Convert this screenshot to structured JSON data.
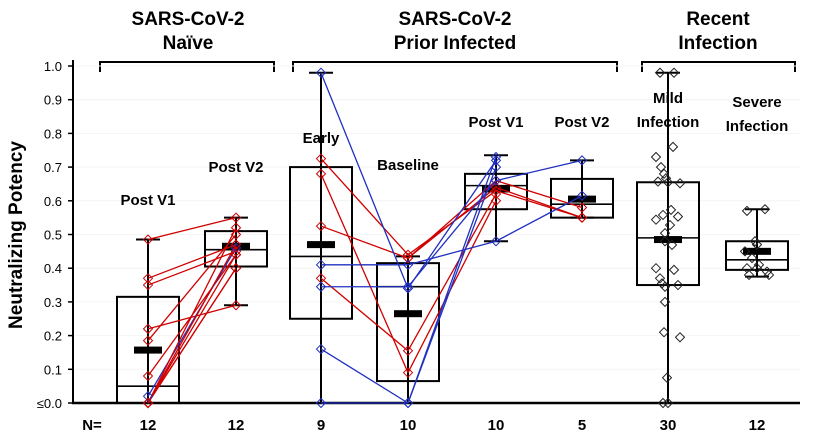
{
  "chart_data": {
    "type": "box",
    "ylabel": "Neutralizing Potency",
    "ylim": [
      0,
      1.0
    ],
    "yticks": [
      "≤0.0",
      "0.1",
      "0.2",
      "0.3",
      "0.4",
      "0.5",
      "0.6",
      "0.7",
      "0.8",
      "0.9",
      "1.0"
    ],
    "grid": false,
    "n_prefix": "N=",
    "group_headers": [
      {
        "line1": "SARS-CoV-2",
        "line2": "Naïve"
      },
      {
        "line1": "SARS-CoV-2",
        "line2": "Prior Infected"
      },
      {
        "line1": "Recent",
        "line2": "Infection"
      }
    ],
    "categories": [
      {
        "label1": "Post V1",
        "label2": "",
        "n": "12",
        "box": {
          "q1": 0.0,
          "median": 0.05,
          "q3": 0.315,
          "mean": 0.157,
          "whisker_low": 0.0,
          "whisker_high": 0.485
        }
      },
      {
        "label1": "Post V2",
        "label2": "",
        "n": "12",
        "box": {
          "q1": 0.405,
          "median": 0.455,
          "q3": 0.51,
          "mean": 0.465,
          "whisker_low": 0.29,
          "whisker_high": 0.55
        }
      },
      {
        "label1": "Early",
        "label2": "",
        "n": "9",
        "box": {
          "q1": 0.25,
          "median": 0.435,
          "q3": 0.7,
          "mean": 0.47,
          "whisker_low": 0.0,
          "whisker_high": 0.98
        }
      },
      {
        "label1": "Baseline",
        "label2": "",
        "n": "10",
        "box": {
          "q1": 0.065,
          "median": 0.345,
          "q3": 0.415,
          "mean": 0.265,
          "whisker_low": 0.0,
          "whisker_high": 0.435
        }
      },
      {
        "label1": "Post V1",
        "label2": "",
        "n": "10",
        "box": {
          "q1": 0.575,
          "median": 0.645,
          "q3": 0.68,
          "mean": 0.635,
          "whisker_low": 0.48,
          "whisker_high": 0.735
        }
      },
      {
        "label1": "Post V2",
        "label2": "",
        "n": "5",
        "box": {
          "q1": 0.55,
          "median": 0.59,
          "q3": 0.665,
          "mean": 0.605,
          "whisker_low": 0.55,
          "whisker_high": 0.72
        }
      },
      {
        "label1": "Mild",
        "label2": "Infection",
        "n": "30",
        "box": {
          "q1": 0.35,
          "median": 0.49,
          "q3": 0.655,
          "mean": 0.485,
          "whisker_low": 0.0,
          "whisker_high": 0.98
        }
      },
      {
        "label1": "Severe",
        "label2": "Infection",
        "n": "12",
        "box": {
          "q1": 0.395,
          "median": 0.425,
          "q3": 0.48,
          "mean": 0.45,
          "whisker_low": 0.375,
          "whisker_high": 0.575
        }
      }
    ],
    "paired_naive": [
      {
        "color": "#d00000",
        "values": [
          0.485,
          0.55
        ]
      },
      {
        "color": "#d00000",
        "values": [
          0.37,
          0.47
        ]
      },
      {
        "color": "#d00000",
        "values": [
          0.35,
          0.45
        ]
      },
      {
        "color": "#d00000",
        "values": [
          0.22,
          0.29
        ]
      },
      {
        "color": "#d00000",
        "values": [
          0.185,
          0.5
        ]
      },
      {
        "color": "#d00000",
        "values": [
          0.08,
          0.44
        ]
      },
      {
        "color": "#2030c0",
        "values": [
          0.02,
          0.46
        ]
      },
      {
        "color": "#d00000",
        "values": [
          0.0,
          0.4
        ]
      },
      {
        "color": "#d00000",
        "values": [
          0.0,
          0.47
        ]
      },
      {
        "color": "#d00000",
        "values": [
          0.0,
          0.52
        ]
      },
      {
        "color": "#d00000",
        "values": [
          0.0,
          0.44
        ]
      },
      {
        "color": "#d00000",
        "values": [
          0.0,
          0.4
        ]
      }
    ],
    "paired_prior": [
      {
        "color": "#d00000",
        "values": [
          0.725,
          0.44,
          0.63,
          0.55
        ]
      },
      {
        "color": "#d00000",
        "values": [
          0.68,
          0.09,
          0.6,
          null
        ]
      },
      {
        "color": "#d00000",
        "values": [
          0.525,
          0.43,
          0.64,
          0.55
        ]
      },
      {
        "color": "#d00000",
        "values": [
          0.37,
          0.155,
          0.62,
          null
        ]
      },
      {
        "color": "#d00000",
        "values": [
          null,
          0.43,
          0.66,
          0.58
        ]
      },
      {
        "color": "#2030c0",
        "values": [
          0.98,
          0.34,
          0.72,
          null
        ]
      },
      {
        "color": "#2030c0",
        "values": [
          0.345,
          0.345,
          0.66,
          0.72
        ]
      },
      {
        "color": "#2030c0",
        "values": [
          0.41,
          0.41,
          0.48,
          0.615
        ]
      },
      {
        "color": "#2030c0",
        "values": [
          0.16,
          0.0,
          0.73,
          null
        ]
      },
      {
        "color": "#2030c0",
        "values": [
          0.0,
          0.0,
          0.7,
          null
        ]
      }
    ],
    "points_mild": [
      0.98,
      0.98,
      0.76,
      0.73,
      0.7,
      0.68,
      0.667,
      0.657,
      0.652,
      0.655,
      0.573,
      0.558,
      0.553,
      0.544,
      0.528,
      0.504,
      0.469,
      0.48,
      0.4,
      0.395,
      0.37,
      0.355,
      0.345,
      0.35,
      0.3,
      0.21,
      0.195,
      0.075,
      0.0,
      0.0
    ],
    "points_severe": [
      0.57,
      0.575,
      0.48,
      0.47,
      0.45,
      0.43,
      0.41,
      0.4,
      0.4,
      0.39,
      0.38,
      0.38
    ]
  }
}
